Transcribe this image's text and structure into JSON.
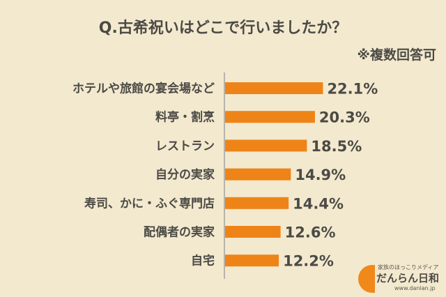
{
  "header": {
    "title": "Q.古希祝いはどこで行いましたか？",
    "note": "※複数回答可"
  },
  "colors": {
    "bar": "#ee8417",
    "axis": "#b7b4ab",
    "background": "#f3e9cf",
    "text": "#4b4a44"
  },
  "chart_data": {
    "type": "bar",
    "orientation": "horizontal",
    "categories": [
      "ホテルや旅館の宴会場など",
      "料亭・割烹",
      "レストラン",
      "自分の実家",
      "寿司、かに・ふぐ専門店",
      "配偶者の実家",
      "自宅"
    ],
    "values": [
      22.1,
      20.3,
      18.5,
      14.9,
      14.4,
      12.6,
      12.2
    ],
    "value_labels": [
      "22.1%",
      "20.3%",
      "18.5%",
      "14.9%",
      "14.4%",
      "12.6%",
      "12.2%"
    ],
    "xlim": [
      0,
      26
    ],
    "grid": false
  },
  "logo": {
    "tagline": "家族のほっこりメディア",
    "name": "だんらん日和",
    "url": "www.danlan.jp"
  }
}
